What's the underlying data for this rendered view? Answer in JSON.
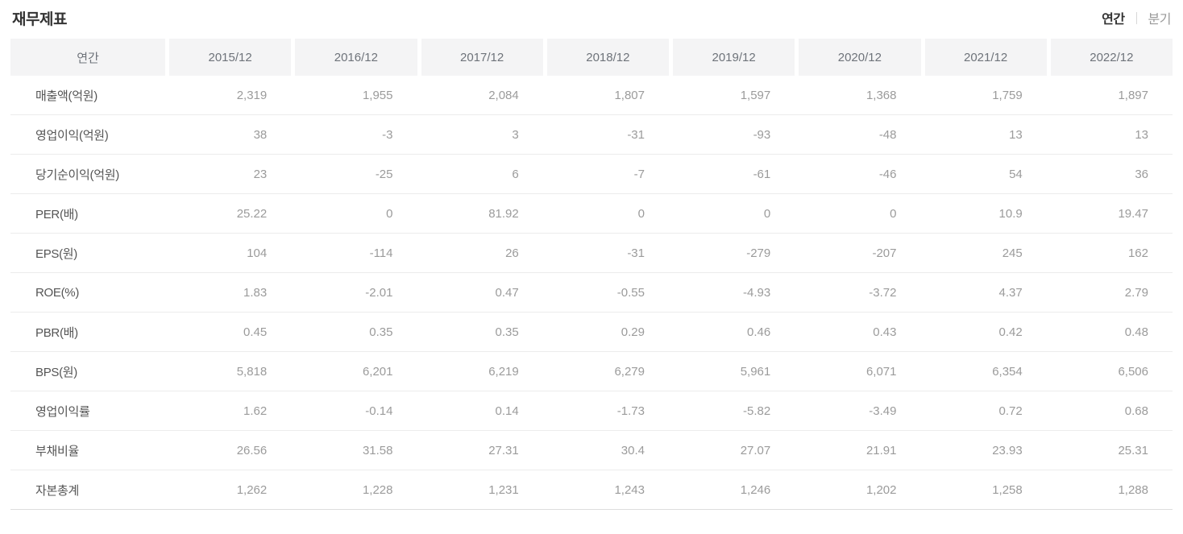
{
  "page": {
    "title": "재무제표"
  },
  "toggle": {
    "annual_label": "연간",
    "quarterly_label": "분기",
    "active": "연간"
  },
  "table": {
    "corner_header": "연간",
    "columns": [
      "2015/12",
      "2016/12",
      "2017/12",
      "2018/12",
      "2019/12",
      "2020/12",
      "2021/12",
      "2022/12"
    ],
    "rows": [
      {
        "label": "매출액(억원)",
        "values": [
          "2,319",
          "1,955",
          "2,084",
          "1,807",
          "1,597",
          "1,368",
          "1,759",
          "1,897"
        ]
      },
      {
        "label": "영업이익(억원)",
        "values": [
          "38",
          "-3",
          "3",
          "-31",
          "-93",
          "-48",
          "13",
          "13"
        ]
      },
      {
        "label": "당기순이익(억원)",
        "values": [
          "23",
          "-25",
          "6",
          "-7",
          "-61",
          "-46",
          "54",
          "36"
        ]
      },
      {
        "label": "PER(배)",
        "values": [
          "25.22",
          "0",
          "81.92",
          "0",
          "0",
          "0",
          "10.9",
          "19.47"
        ]
      },
      {
        "label": "EPS(원)",
        "values": [
          "104",
          "-114",
          "26",
          "-31",
          "-279",
          "-207",
          "245",
          "162"
        ]
      },
      {
        "label": "ROE(%)",
        "values": [
          "1.83",
          "-2.01",
          "0.47",
          "-0.55",
          "-4.93",
          "-3.72",
          "4.37",
          "2.79"
        ]
      },
      {
        "label": "PBR(배)",
        "values": [
          "0.45",
          "0.35",
          "0.35",
          "0.29",
          "0.46",
          "0.43",
          "0.42",
          "0.48"
        ]
      },
      {
        "label": "BPS(원)",
        "values": [
          "5,818",
          "6,201",
          "6,219",
          "6,279",
          "5,961",
          "6,071",
          "6,354",
          "6,506"
        ]
      },
      {
        "label": "영업이익률",
        "values": [
          "1.62",
          "-0.14",
          "0.14",
          "-1.73",
          "-5.82",
          "-3.49",
          "0.72",
          "0.68"
        ]
      },
      {
        "label": "부채비율",
        "values": [
          "26.56",
          "31.58",
          "27.31",
          "30.4",
          "27.07",
          "21.91",
          "23.93",
          "25.31"
        ]
      },
      {
        "label": "자본총계",
        "values": [
          "1,262",
          "1,228",
          "1,231",
          "1,243",
          "1,246",
          "1,202",
          "1,258",
          "1,288"
        ]
      }
    ]
  },
  "colors": {
    "header_bg": "#f4f4f5",
    "header_text": "#6e737a",
    "label_text": "#555555",
    "value_text": "#9b9b9b",
    "title_text": "#333333",
    "row_border": "#ececec",
    "bottom_border": "#dddddd"
  }
}
